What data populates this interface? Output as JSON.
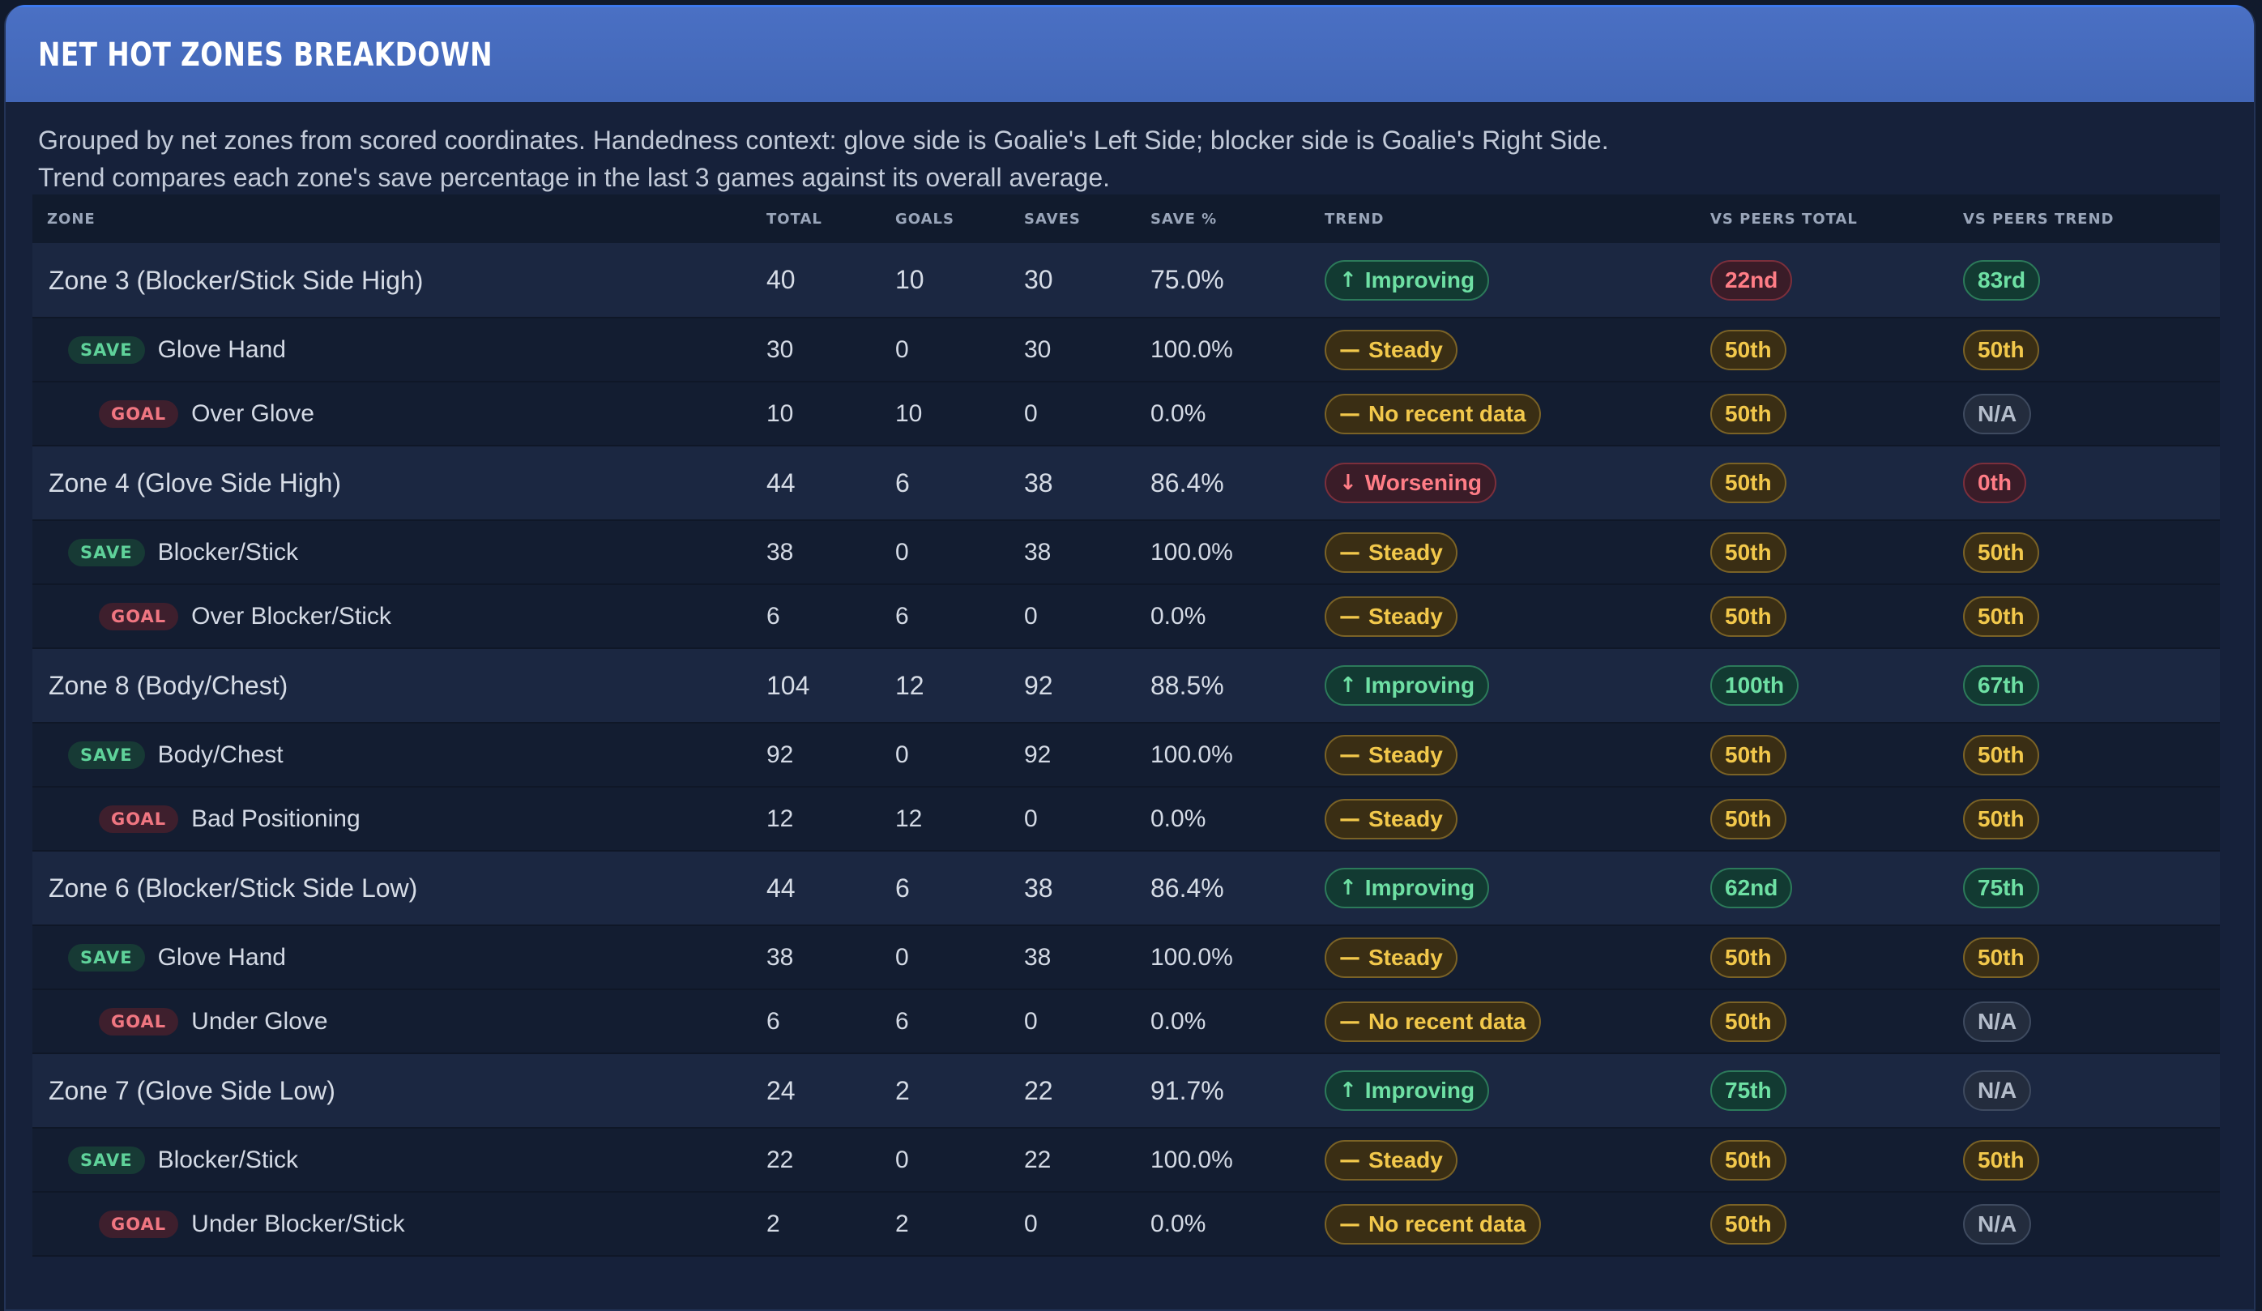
{
  "title": "NET HOT ZONES BREAKDOWN",
  "description": [
    "Grouped by net zones from scored coordinates. Handedness context: glove side is Goalie's Left Side; blocker side is Goalie's Right Side.",
    "Trend compares each zone's save percentage in the last 3 games against its overall average."
  ],
  "columns": {
    "zone": "ZONE",
    "total": "TOTAL",
    "goals": "GOALS",
    "saves": "SAVES",
    "save_pct": "SAVE %",
    "trend": "TREND",
    "vs_peers_total": "VS PEERS TOTAL",
    "vs_peers_trend": "VS PEERS TREND"
  },
  "tags": {
    "save": "SAVE",
    "goal": "GOAL"
  },
  "colors": {
    "header_bar": "#4769bd",
    "panel": "#16213a",
    "green": "#6ee0a4",
    "red": "#ff7d86",
    "amber": "#f2c84b",
    "gray": "#b4bdcb"
  },
  "rows": [
    {
      "kind": "group",
      "zone": "Zone 3 (Blocker/Stick Side High)",
      "total": "40",
      "goals": "10",
      "saves": "30",
      "save_pct": "75.0%",
      "trend": {
        "label": "Improving",
        "icon": "arrow-up-icon",
        "tone": "green"
      },
      "vs_total": {
        "label": "22nd",
        "tone": "red"
      },
      "vs_trend": {
        "label": "83rd",
        "tone": "green"
      }
    },
    {
      "kind": "save",
      "zone": "Glove Hand",
      "total": "30",
      "goals": "0",
      "saves": "30",
      "save_pct": "100.0%",
      "trend": {
        "label": "Steady",
        "icon": "dash-icon",
        "tone": "amber"
      },
      "vs_total": {
        "label": "50th",
        "tone": "amber"
      },
      "vs_trend": {
        "label": "50th",
        "tone": "amber"
      }
    },
    {
      "kind": "goal",
      "zone": "Over Glove",
      "total": "10",
      "goals": "10",
      "saves": "0",
      "save_pct": "0.0%",
      "trend": {
        "label": "No recent data",
        "icon": "dash-icon",
        "tone": "amber"
      },
      "vs_total": {
        "label": "50th",
        "tone": "amber"
      },
      "vs_trend": {
        "label": "N/A",
        "tone": "gray"
      }
    },
    {
      "kind": "group",
      "zone": "Zone 4 (Glove Side High)",
      "total": "44",
      "goals": "6",
      "saves": "38",
      "save_pct": "86.4%",
      "trend": {
        "label": "Worsening",
        "icon": "arrow-down-icon",
        "tone": "red"
      },
      "vs_total": {
        "label": "50th",
        "tone": "amber"
      },
      "vs_trend": {
        "label": "0th",
        "tone": "red"
      }
    },
    {
      "kind": "save",
      "zone": "Blocker/Stick",
      "total": "38",
      "goals": "0",
      "saves": "38",
      "save_pct": "100.0%",
      "trend": {
        "label": "Steady",
        "icon": "dash-icon",
        "tone": "amber"
      },
      "vs_total": {
        "label": "50th",
        "tone": "amber"
      },
      "vs_trend": {
        "label": "50th",
        "tone": "amber"
      }
    },
    {
      "kind": "goal",
      "zone": "Over Blocker/Stick",
      "total": "6",
      "goals": "6",
      "saves": "0",
      "save_pct": "0.0%",
      "trend": {
        "label": "Steady",
        "icon": "dash-icon",
        "tone": "amber"
      },
      "vs_total": {
        "label": "50th",
        "tone": "amber"
      },
      "vs_trend": {
        "label": "50th",
        "tone": "amber"
      }
    },
    {
      "kind": "group",
      "zone": "Zone 8 (Body/Chest)",
      "total": "104",
      "goals": "12",
      "saves": "92",
      "save_pct": "88.5%",
      "trend": {
        "label": "Improving",
        "icon": "arrow-up-icon",
        "tone": "green"
      },
      "vs_total": {
        "label": "100th",
        "tone": "green"
      },
      "vs_trend": {
        "label": "67th",
        "tone": "green"
      }
    },
    {
      "kind": "save",
      "zone": "Body/Chest",
      "total": "92",
      "goals": "0",
      "saves": "92",
      "save_pct": "100.0%",
      "trend": {
        "label": "Steady",
        "icon": "dash-icon",
        "tone": "amber"
      },
      "vs_total": {
        "label": "50th",
        "tone": "amber"
      },
      "vs_trend": {
        "label": "50th",
        "tone": "amber"
      }
    },
    {
      "kind": "goal",
      "zone": "Bad Positioning",
      "total": "12",
      "goals": "12",
      "saves": "0",
      "save_pct": "0.0%",
      "trend": {
        "label": "Steady",
        "icon": "dash-icon",
        "tone": "amber"
      },
      "vs_total": {
        "label": "50th",
        "tone": "amber"
      },
      "vs_trend": {
        "label": "50th",
        "tone": "amber"
      }
    },
    {
      "kind": "group",
      "zone": "Zone 6 (Blocker/Stick Side Low)",
      "total": "44",
      "goals": "6",
      "saves": "38",
      "save_pct": "86.4%",
      "trend": {
        "label": "Improving",
        "icon": "arrow-up-icon",
        "tone": "green"
      },
      "vs_total": {
        "label": "62nd",
        "tone": "green"
      },
      "vs_trend": {
        "label": "75th",
        "tone": "green"
      }
    },
    {
      "kind": "save",
      "zone": "Glove Hand",
      "total": "38",
      "goals": "0",
      "saves": "38",
      "save_pct": "100.0%",
      "trend": {
        "label": "Steady",
        "icon": "dash-icon",
        "tone": "amber"
      },
      "vs_total": {
        "label": "50th",
        "tone": "amber"
      },
      "vs_trend": {
        "label": "50th",
        "tone": "amber"
      }
    },
    {
      "kind": "goal",
      "zone": "Under Glove",
      "total": "6",
      "goals": "6",
      "saves": "0",
      "save_pct": "0.0%",
      "trend": {
        "label": "No recent data",
        "icon": "dash-icon",
        "tone": "amber"
      },
      "vs_total": {
        "label": "50th",
        "tone": "amber"
      },
      "vs_trend": {
        "label": "N/A",
        "tone": "gray"
      }
    },
    {
      "kind": "group",
      "zone": "Zone 7 (Glove Side Low)",
      "total": "24",
      "goals": "2",
      "saves": "22",
      "save_pct": "91.7%",
      "trend": {
        "label": "Improving",
        "icon": "arrow-up-icon",
        "tone": "green"
      },
      "vs_total": {
        "label": "75th",
        "tone": "green"
      },
      "vs_trend": {
        "label": "N/A",
        "tone": "gray"
      }
    },
    {
      "kind": "save",
      "zone": "Blocker/Stick",
      "total": "22",
      "goals": "0",
      "saves": "22",
      "save_pct": "100.0%",
      "trend": {
        "label": "Steady",
        "icon": "dash-icon",
        "tone": "amber"
      },
      "vs_total": {
        "label": "50th",
        "tone": "amber"
      },
      "vs_trend": {
        "label": "50th",
        "tone": "amber"
      }
    },
    {
      "kind": "goal",
      "zone": "Under Blocker/Stick",
      "total": "2",
      "goals": "2",
      "saves": "0",
      "save_pct": "0.0%",
      "trend": {
        "label": "No recent data",
        "icon": "dash-icon",
        "tone": "amber"
      },
      "vs_total": {
        "label": "50th",
        "tone": "amber"
      },
      "vs_trend": {
        "label": "N/A",
        "tone": "gray"
      }
    }
  ]
}
